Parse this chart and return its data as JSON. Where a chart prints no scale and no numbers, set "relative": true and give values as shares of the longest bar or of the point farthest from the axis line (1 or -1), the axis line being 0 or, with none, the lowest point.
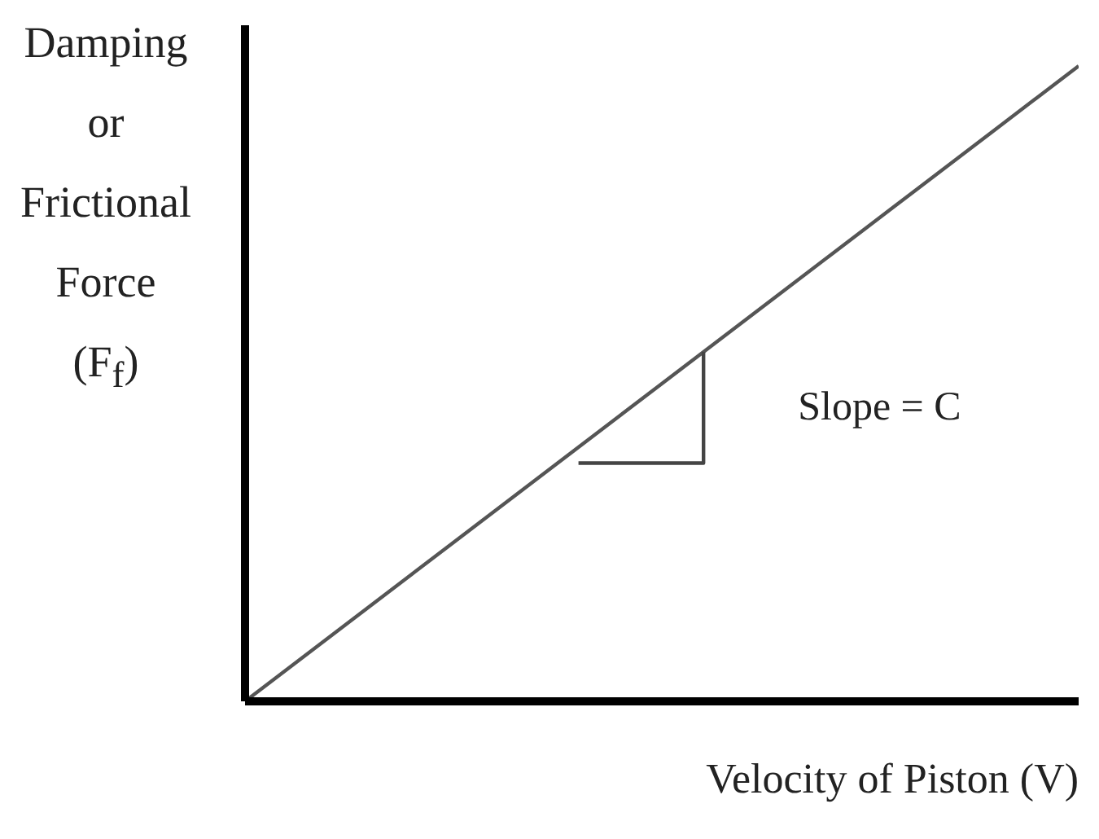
{
  "chart_data": {
    "type": "line",
    "ylabel": "Damping or Frictional Force (F$_{f}$)",
    "xlabel": "Velocity of Piston (V)",
    "relative": true,
    "categories": [
      null,
      null,
      null,
      null,
      null,
      null,
      null,
      null,
      null,
      null,
      null,
      null,
      null,
      null,
      null,
      null,
      null,
      null,
      null,
      null,
      null
    ],
    "grid": false,
    "marker": "none",
    "line_style": "solid",
    "series": [
      {
        "color": "#555555",
        "values": [
          0,
          0.05,
          0.1,
          0.15,
          0.2,
          0.25,
          0.3,
          0.35,
          0.4,
          0.45,
          0.5,
          0.55,
          0.6,
          0.65,
          0.7,
          0.75,
          0.8,
          0.85,
          0.9,
          0.95,
          1
        ]
      },
      {
        "type": "step",
        "color": "#444444",
        "values": [
          null,
          null,
          null,
          null,
          null,
          null,
          null,
          null,
          0.375,
          0.375,
          0.375,
          0.55,
          null,
          null,
          null,
          null,
          null,
          null,
          null,
          null,
          null
        ]
      }
    ],
    "annotations": [
      "Slope = C"
    ]
  }
}
